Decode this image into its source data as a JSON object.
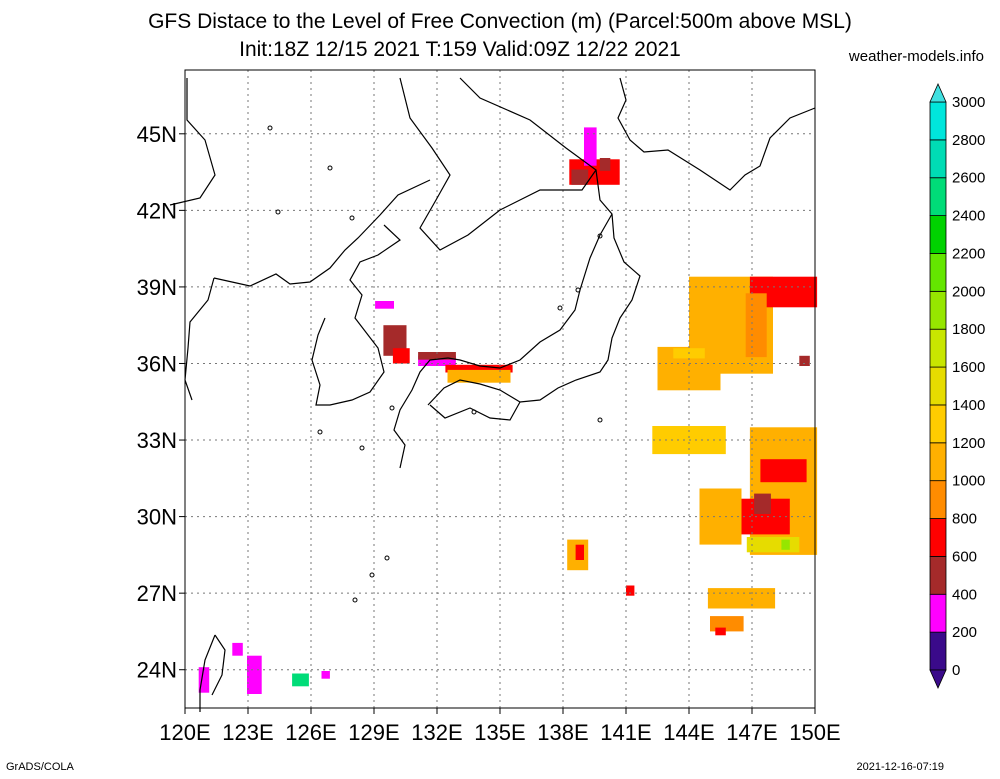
{
  "title": {
    "line1": "GFS Distace to the Level of Free Convection (m) (Parcel:500m above MSL)",
    "line2": "Init:18Z 12/15 2021 T:159 Valid:09Z 12/22 2021"
  },
  "brand": "weather-models.info",
  "footer": {
    "left": "GrADS/COLA",
    "right": "2021-12-16-07:19"
  },
  "axes": {
    "lat_labels": [
      "24N",
      "27N",
      "30N",
      "33N",
      "36N",
      "39N",
      "42N",
      "45N"
    ],
    "lat_values": [
      24,
      27,
      30,
      33,
      36,
      39,
      42,
      45
    ],
    "lon_labels": [
      "120E",
      "123E",
      "126E",
      "129E",
      "132E",
      "135E",
      "138E",
      "141E",
      "144E",
      "147E",
      "150E"
    ],
    "lon_values": [
      120,
      123,
      126,
      129,
      132,
      135,
      138,
      141,
      144,
      147,
      150
    ],
    "lat_range": [
      22.5,
      47.5
    ],
    "lon_range": [
      120,
      150
    ]
  },
  "colorbar": {
    "labels": [
      "0",
      "200",
      "400",
      "600",
      "800",
      "1000",
      "1200",
      "1400",
      "1600",
      "1800",
      "2000",
      "2200",
      "2400",
      "2600",
      "2800",
      "3000"
    ],
    "colors": [
      "#3a0a8a",
      "#ff00ff",
      "#a52a2a",
      "#ff0000",
      "#ff8c00",
      "#ffb000",
      "#ffcc00",
      "#e6dc00",
      "#c8e600",
      "#96e600",
      "#64e600",
      "#00d200",
      "#00dc78",
      "#00dcb4",
      "#00e6dc",
      "#40e0e0"
    ]
  },
  "fields": [
    {
      "lon": 139.5,
      "lat": 43.5,
      "w": 2.4,
      "h": 1.0,
      "c": "#ff0000"
    },
    {
      "lon": 139.3,
      "lat": 44.5,
      "w": 0.6,
      "h": 1.5,
      "c": "#ff00ff"
    },
    {
      "lon": 138.8,
      "lat": 43.3,
      "w": 0.8,
      "h": 0.6,
      "c": "#a52a2a"
    },
    {
      "lon": 140.0,
      "lat": 43.8,
      "w": 0.5,
      "h": 0.5,
      "c": "#a52a2a"
    },
    {
      "lon": 130.0,
      "lat": 36.9,
      "w": 1.1,
      "h": 1.2,
      "c": "#a52a2a"
    },
    {
      "lon": 130.3,
      "lat": 36.3,
      "w": 0.8,
      "h": 0.6,
      "c": "#ff0000"
    },
    {
      "lon": 129.5,
      "lat": 38.3,
      "w": 0.9,
      "h": 0.3,
      "c": "#ff00ff"
    },
    {
      "lon": 132.0,
      "lat": 36.1,
      "w": 1.8,
      "h": 0.4,
      "c": "#ff00ff"
    },
    {
      "lon": 132.0,
      "lat": 36.3,
      "w": 1.8,
      "h": 0.3,
      "c": "#a52a2a"
    },
    {
      "lon": 134.0,
      "lat": 35.8,
      "w": 3.2,
      "h": 0.3,
      "c": "#ff0000"
    },
    {
      "lon": 134.0,
      "lat": 35.5,
      "w": 3.0,
      "h": 0.5,
      "c": "#ffb000"
    },
    {
      "lon": 146.0,
      "lat": 37.5,
      "w": 4.0,
      "h": 3.8,
      "c": "#ffb000"
    },
    {
      "lon": 144.0,
      "lat": 35.8,
      "w": 3.0,
      "h": 1.7,
      "c": "#ffb000"
    },
    {
      "lon": 148.5,
      "lat": 38.8,
      "w": 3.2,
      "h": 1.2,
      "c": "#ff0000"
    },
    {
      "lon": 147.2,
      "lat": 37.5,
      "w": 1.0,
      "h": 2.5,
      "c": "#ff8c00"
    },
    {
      "lon": 144.0,
      "lat": 33.0,
      "w": 3.5,
      "h": 1.1,
      "c": "#ffcc00"
    },
    {
      "lon": 148.5,
      "lat": 31.0,
      "w": 3.2,
      "h": 5.0,
      "c": "#ffb000"
    },
    {
      "lon": 147.0,
      "lat": 30.0,
      "w": 3.6,
      "h": 1.4,
      "c": "#ff0000"
    },
    {
      "lon": 148.5,
      "lat": 31.8,
      "w": 2.2,
      "h": 0.9,
      "c": "#ff0000"
    },
    {
      "lon": 147.5,
      "lat": 30.5,
      "w": 0.8,
      "h": 0.8,
      "c": "#a52a2a"
    },
    {
      "lon": 148.0,
      "lat": 28.9,
      "w": 2.5,
      "h": 0.6,
      "c": "#e6dc00"
    },
    {
      "lon": 148.6,
      "lat": 28.9,
      "w": 0.4,
      "h": 0.4,
      "c": "#96e600"
    },
    {
      "lon": 145.5,
      "lat": 30.0,
      "w": 2.0,
      "h": 2.2,
      "c": "#ffb000"
    },
    {
      "lon": 146.5,
      "lat": 26.8,
      "w": 3.2,
      "h": 0.8,
      "c": "#ffb000"
    },
    {
      "lon": 145.8,
      "lat": 25.8,
      "w": 1.6,
      "h": 0.6,
      "c": "#ff8c00"
    },
    {
      "lon": 145.5,
      "lat": 25.5,
      "w": 0.5,
      "h": 0.3,
      "c": "#ff0000"
    },
    {
      "lon": 138.7,
      "lat": 28.5,
      "w": 1.0,
      "h": 1.2,
      "c": "#ffb000"
    },
    {
      "lon": 138.8,
      "lat": 28.6,
      "w": 0.4,
      "h": 0.6,
      "c": "#ff0000"
    },
    {
      "lon": 144.0,
      "lat": 36.4,
      "w": 1.5,
      "h": 0.4,
      "c": "#ffcc00"
    },
    {
      "lon": 123.3,
      "lat": 23.8,
      "w": 0.7,
      "h": 1.5,
      "c": "#ff00ff"
    },
    {
      "lon": 122.5,
      "lat": 24.8,
      "w": 0.5,
      "h": 0.5,
      "c": "#ff00ff"
    },
    {
      "lon": 125.5,
      "lat": 23.6,
      "w": 0.8,
      "h": 0.5,
      "c": "#00dc78"
    },
    {
      "lon": 126.7,
      "lat": 23.8,
      "w": 0.4,
      "h": 0.3,
      "c": "#ff00ff"
    },
    {
      "lon": 120.9,
      "lat": 23.6,
      "w": 0.5,
      "h": 1.0,
      "c": "#ff00ff"
    },
    {
      "lon": 141.2,
      "lat": 27.1,
      "w": 0.4,
      "h": 0.4,
      "c": "#ff0000"
    },
    {
      "lon": 149.5,
      "lat": 36.1,
      "w": 0.5,
      "h": 0.4,
      "c": "#a52a2a"
    }
  ],
  "coast": [
    [
      [
        187,
        78
      ],
      [
        187,
        120
      ],
      [
        205,
        140
      ],
      [
        215,
        175
      ],
      [
        200,
        198
      ],
      [
        170,
        205
      ]
    ],
    [
      [
        400,
        78
      ],
      [
        410,
        118
      ],
      [
        432,
        148
      ],
      [
        450,
        175
      ],
      [
        436,
        200
      ],
      [
        420,
        228
      ],
      [
        440,
        250
      ],
      [
        468,
        235
      ],
      [
        500,
        210
      ],
      [
        540,
        190
      ],
      [
        582,
        190
      ],
      [
        596,
        170
      ],
      [
        566,
        148
      ],
      [
        530,
        120
      ],
      [
        480,
        98
      ],
      [
        460,
        78
      ]
    ],
    [
      [
        430,
        180
      ],
      [
        398,
        195
      ],
      [
        380,
        215
      ],
      [
        358,
        238
      ],
      [
        345,
        250
      ],
      [
        330,
        268
      ],
      [
        310,
        282
      ],
      [
        290,
        284
      ],
      [
        276,
        274
      ],
      [
        250,
        286
      ],
      [
        232,
        282
      ],
      [
        214,
        278
      ]
    ],
    [
      [
        214,
        278
      ],
      [
        208,
        300
      ],
      [
        190,
        322
      ],
      [
        188,
        348
      ],
      [
        185,
        380
      ],
      [
        192,
        400
      ]
    ],
    [
      [
        384,
        225
      ],
      [
        400,
        240
      ],
      [
        378,
        255
      ],
      [
        360,
        262
      ],
      [
        350,
        280
      ],
      [
        362,
        295
      ],
      [
        355,
        318
      ],
      [
        378,
        348
      ],
      [
        384,
        372
      ],
      [
        370,
        392
      ],
      [
        352,
        400
      ],
      [
        330,
        405
      ],
      [
        316,
        405
      ],
      [
        320,
        385
      ],
      [
        312,
        360
      ],
      [
        318,
        335
      ],
      [
        325,
        318
      ]
    ],
    [
      [
        620,
        78
      ],
      [
        626,
        100
      ],
      [
        618,
        118
      ],
      [
        630,
        140
      ],
      [
        644,
        152
      ],
      [
        668,
        150
      ],
      [
        700,
        170
      ],
      [
        730,
        190
      ],
      [
        745,
        175
      ],
      [
        760,
        166
      ],
      [
        770,
        138
      ],
      [
        790,
        118
      ],
      [
        815,
        108
      ]
    ],
    [
      [
        596,
        170
      ],
      [
        600,
        200
      ],
      [
        612,
        214
      ],
      [
        614,
        238
      ],
      [
        624,
        262
      ],
      [
        640,
        276
      ],
      [
        632,
        300
      ],
      [
        620,
        318
      ],
      [
        612,
        338
      ],
      [
        608,
        360
      ],
      [
        600,
        372
      ],
      [
        576,
        380
      ],
      [
        558,
        388
      ],
      [
        540,
        400
      ],
      [
        520,
        402
      ],
      [
        500,
        390
      ],
      [
        480,
        384
      ],
      [
        460,
        380
      ],
      [
        444,
        388
      ],
      [
        428,
        405
      ]
    ],
    [
      [
        612,
        214
      ],
      [
        600,
        235
      ],
      [
        590,
        258
      ],
      [
        580,
        290
      ],
      [
        575,
        310
      ],
      [
        560,
        330
      ],
      [
        540,
        342
      ],
      [
        520,
        360
      ],
      [
        500,
        368
      ],
      [
        480,
        366
      ],
      [
        460,
        360
      ],
      [
        448,
        358
      ]
    ],
    [
      [
        448,
        358
      ],
      [
        430,
        360
      ],
      [
        420,
        372
      ],
      [
        412,
        390
      ],
      [
        400,
        410
      ],
      [
        394,
        430
      ],
      [
        405,
        445
      ],
      [
        400,
        468
      ]
    ],
    [
      [
        430,
        405
      ],
      [
        445,
        418
      ],
      [
        470,
        408
      ],
      [
        490,
        418
      ],
      [
        510,
        420
      ],
      [
        520,
        402
      ]
    ],
    [
      [
        215,
        635
      ],
      [
        205,
        660
      ],
      [
        200,
        690
      ],
      [
        200,
        712
      ]
    ],
    [
      [
        215,
        635
      ],
      [
        225,
        650
      ],
      [
        222,
        675
      ],
      [
        212,
        695
      ]
    ]
  ],
  "islands": [
    [
      330,
      168
    ],
    [
      278,
      212
    ],
    [
      270,
      128
    ],
    [
      352,
      218
    ],
    [
      560,
      308
    ],
    [
      578,
      290
    ],
    [
      600,
      236
    ],
    [
      392,
      408
    ],
    [
      362,
      448
    ],
    [
      387,
      558
    ],
    [
      372,
      575
    ],
    [
      355,
      600
    ],
    [
      320,
      432
    ],
    [
      474,
      412
    ],
    [
      600,
      420
    ]
  ]
}
